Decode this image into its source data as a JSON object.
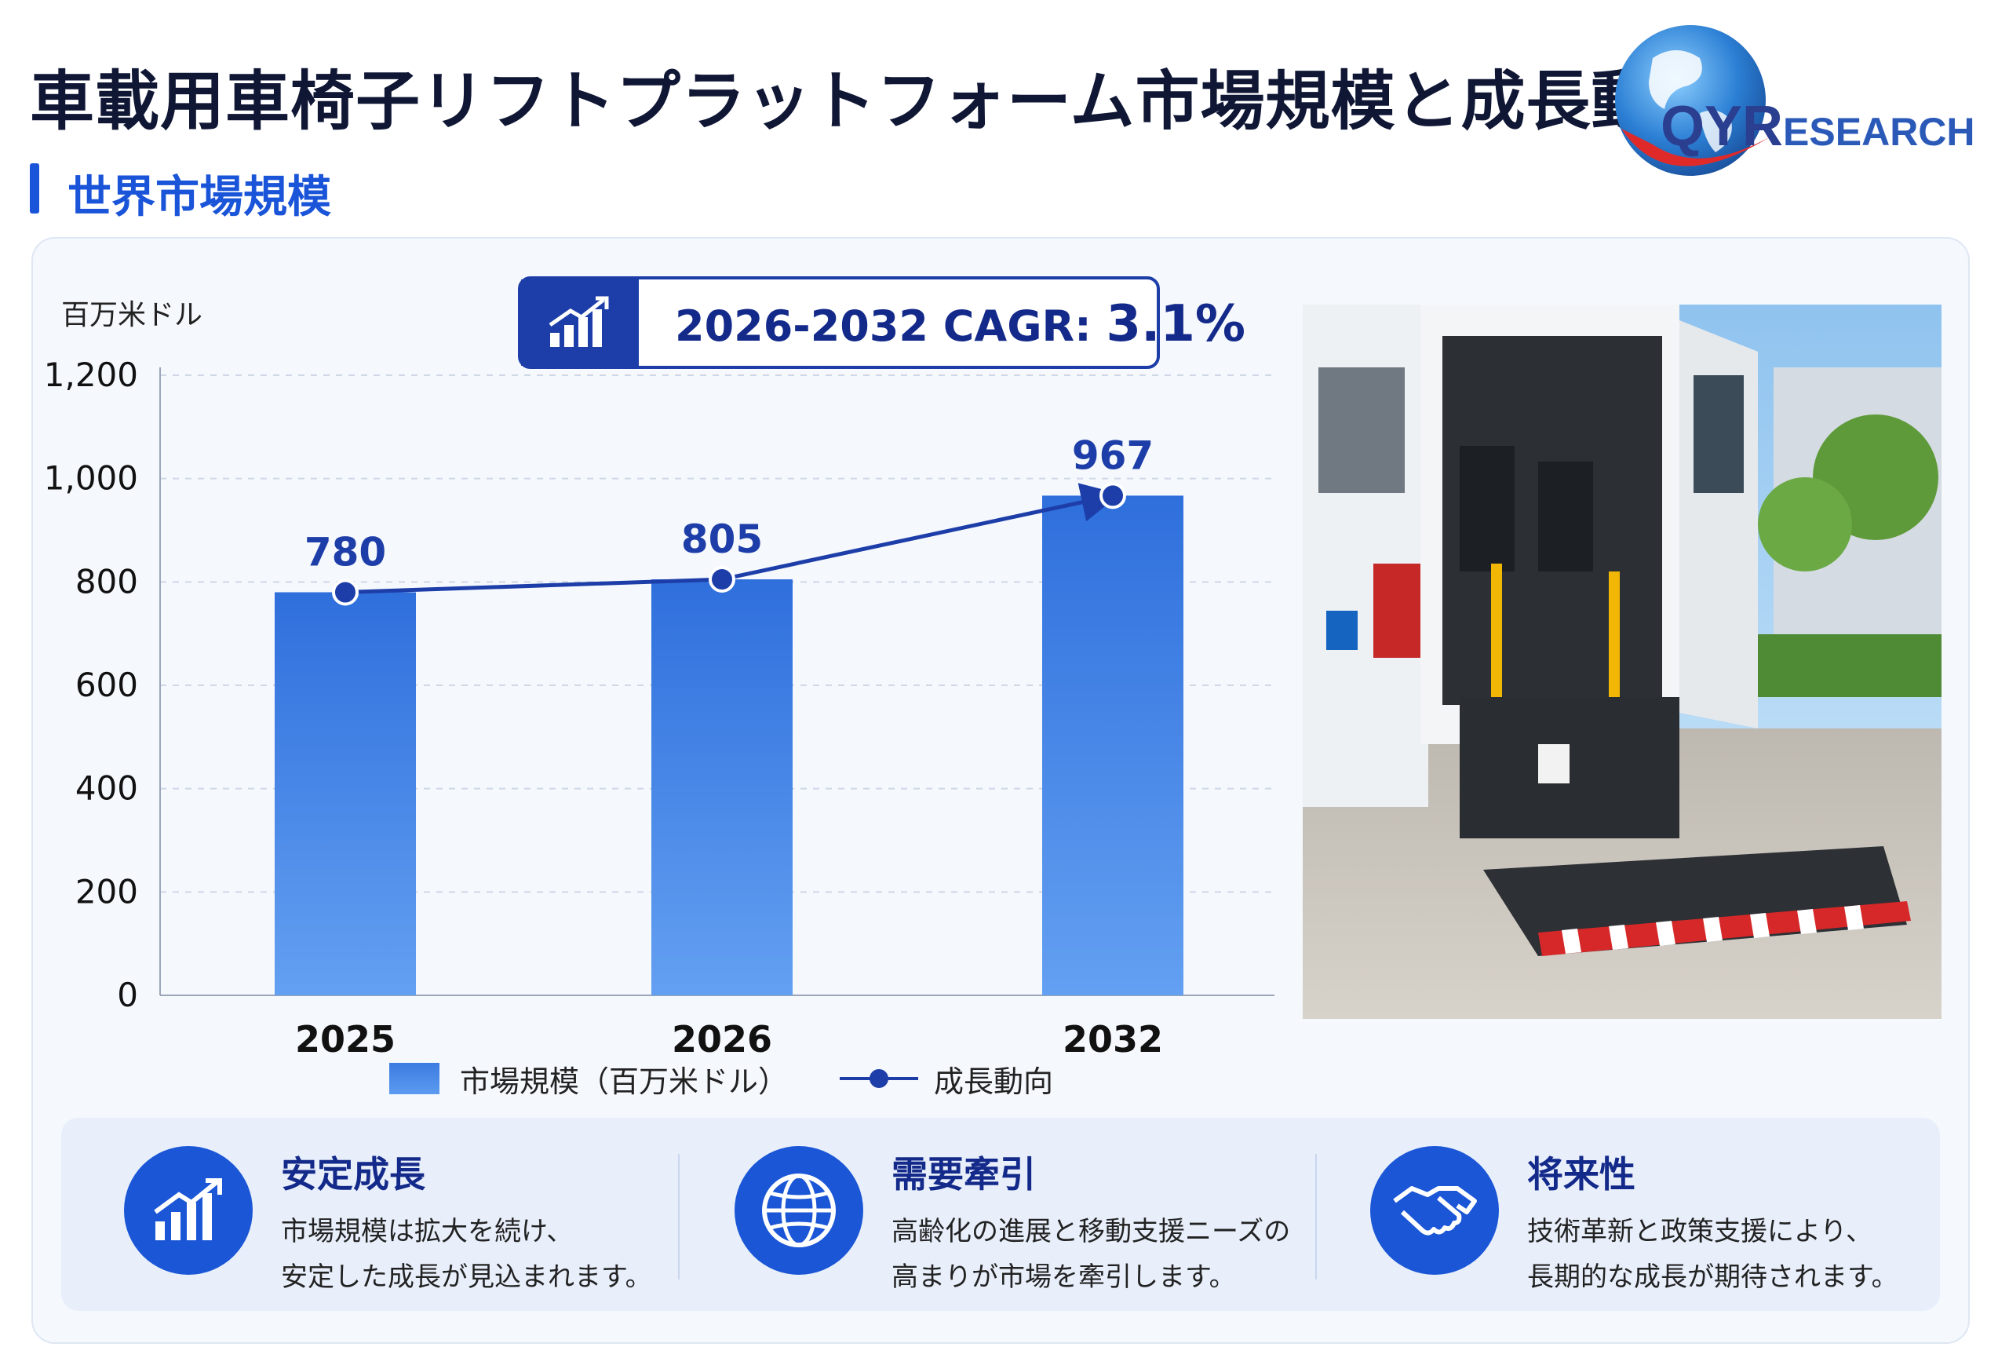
{
  "header": {
    "title": "車載用車椅子リフトプラットフォーム市場規模と成長動向",
    "subtitle": "世界市場規模"
  },
  "logo": {
    "text_big": "QYR",
    "text_small": "ESEARCH",
    "colors": {
      "globe": "#2b7fd4",
      "ring": "#e02a2a",
      "text": "#2b3f91"
    }
  },
  "chart": {
    "unit": "百万米ドル",
    "cagr_label": "2026-2032 CAGR:",
    "cagr_value": "3.1%",
    "legend_bar": "市場規模（百万米ドル）",
    "legend_line": "成長動向"
  },
  "chart_data": {
    "type": "bar",
    "categories": [
      "2025",
      "2026",
      "2032"
    ],
    "values": [
      780,
      805,
      967
    ],
    "data_labels": [
      "780",
      "805",
      "967"
    ],
    "series": [
      {
        "name": "市場規模（百万米ドル）",
        "type": "bar",
        "values": [
          780,
          805,
          967
        ]
      },
      {
        "name": "成長動向",
        "type": "line",
        "values": [
          780,
          805,
          967
        ]
      }
    ],
    "ylim": [
      0,
      1200
    ],
    "yticks": [
      "0",
      "200",
      "400",
      "600",
      "800",
      "1,000",
      "1,200"
    ],
    "ylabel": "百万米ドル",
    "xlabel": "",
    "grid": true,
    "legend_position": "bottom",
    "colors": {
      "bar_top": "#2f6fdc",
      "bar_bottom": "#63a0f2",
      "line": "#1d3ea8"
    }
  },
  "features": [
    {
      "icon": "growth-chart-icon",
      "title": "安定成長",
      "line1": "市場規模は拡大を続け、",
      "line2": "安定した成長が見込まれます。"
    },
    {
      "icon": "globe-icon",
      "title": "需要牽引",
      "line1": "高齢化の進展と移動支援ニーズの",
      "line2": "高まりが市場を牽引します。"
    },
    {
      "icon": "handshake-icon",
      "title": "将来性",
      "line1": "技術革新と政策支援により、",
      "line2": "長期的な成長が期待されます。"
    }
  ],
  "accent_color": "#1a54d8"
}
